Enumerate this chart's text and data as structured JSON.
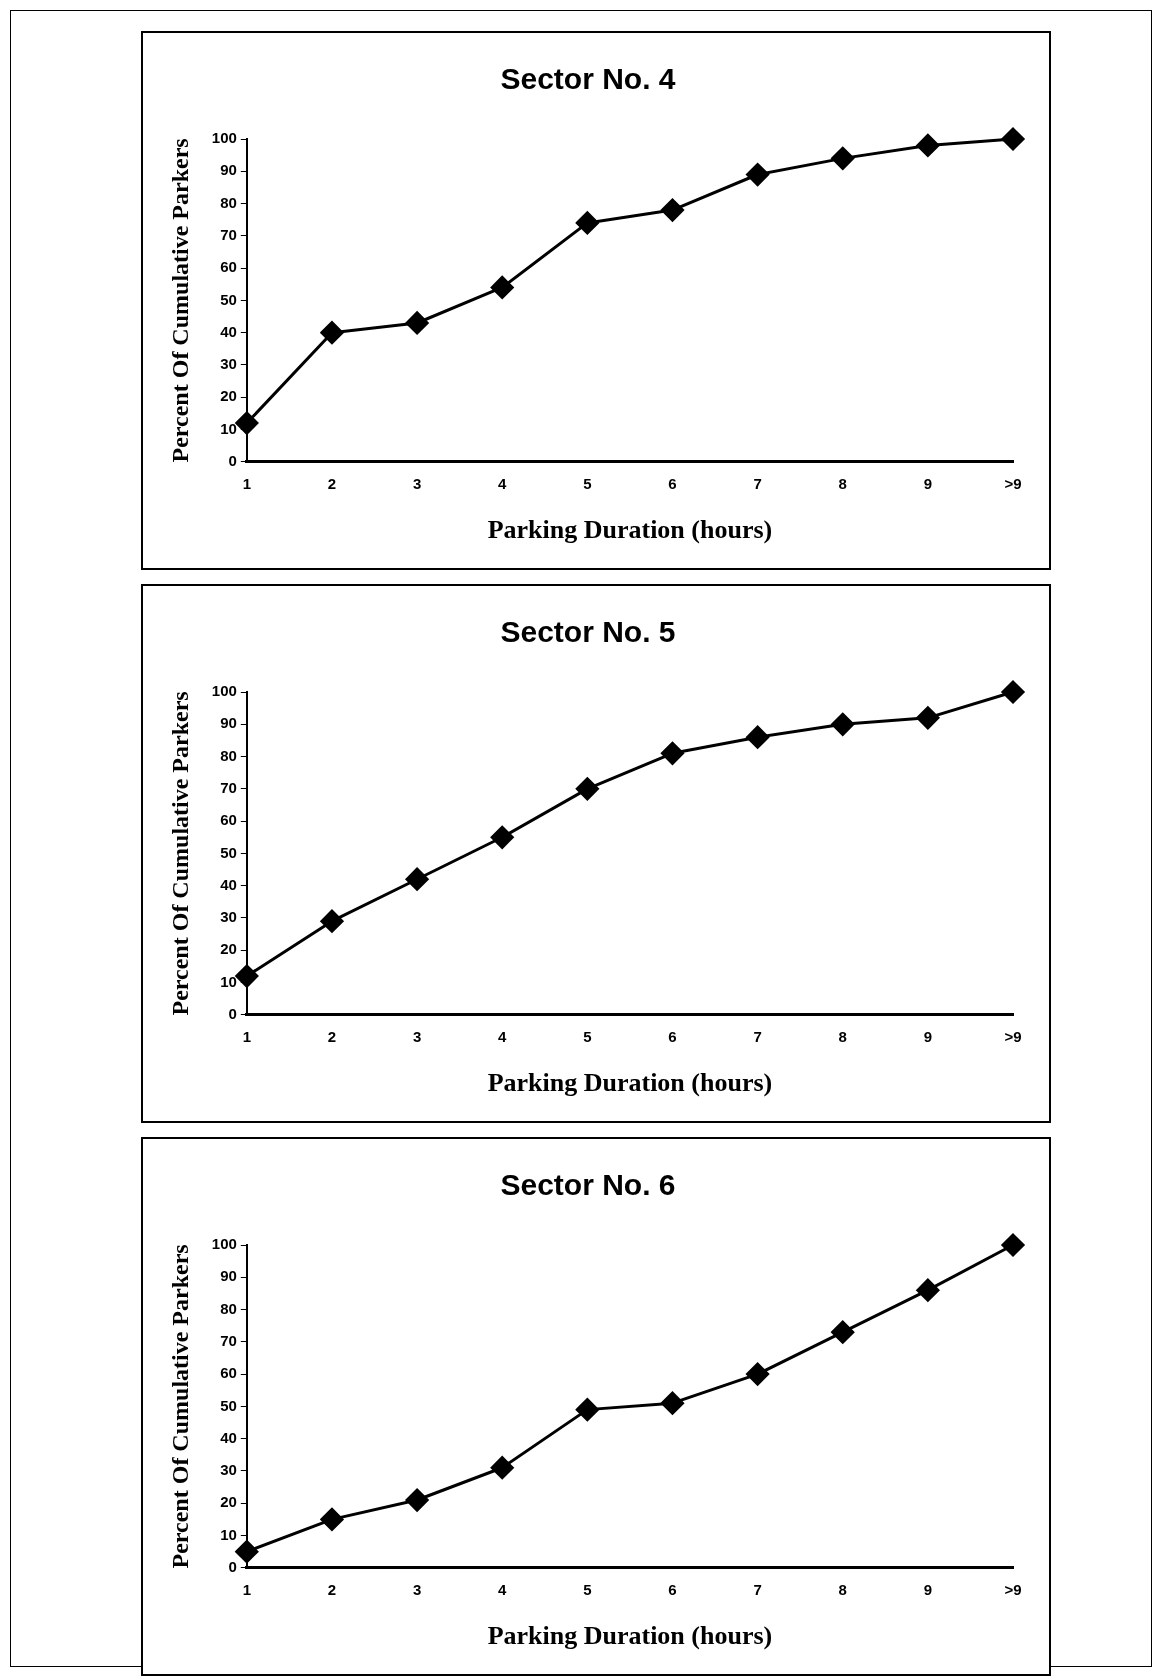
{
  "chart_data": [
    {
      "type": "line",
      "title": "Sector No. 4",
      "xlabel": "Parking Duration (hours)",
      "ylabel": "Percent Of Cumulative Parkers",
      "categories": [
        "1",
        "2",
        "3",
        "4",
        "5",
        "6",
        "7",
        "8",
        "9",
        ">9"
      ],
      "series": [
        {
          "color": "#000000",
          "values": [
            12,
            40,
            43,
            54,
            74,
            78,
            89,
            94,
            98,
            100
          ]
        }
      ],
      "ylim": [
        0,
        100
      ],
      "yticks": [
        0,
        10,
        20,
        30,
        40,
        50,
        60,
        70,
        80,
        90,
        100
      ],
      "grid": false,
      "legend": false,
      "marker": "diamond",
      "line_style": "solid"
    },
    {
      "type": "line",
      "title": "Sector No. 5",
      "xlabel": "Parking Duration (hours)",
      "ylabel": "Percent Of Cumulative Parkers",
      "categories": [
        "1",
        "2",
        "3",
        "4",
        "5",
        "6",
        "7",
        "8",
        "9",
        ">9"
      ],
      "series": [
        {
          "color": "#000000",
          "values": [
            12,
            29,
            42,
            55,
            70,
            81,
            86,
            90,
            92,
            100
          ]
        }
      ],
      "ylim": [
        0,
        100
      ],
      "yticks": [
        0,
        10,
        20,
        30,
        40,
        50,
        60,
        70,
        80,
        90,
        100
      ],
      "grid": false,
      "legend": false,
      "marker": "diamond",
      "line_style": "solid"
    },
    {
      "type": "line",
      "title": "Sector No. 6",
      "xlabel": "Parking Duration (hours)",
      "ylabel": "Percent Of Cumulative Parkers",
      "categories": [
        "1",
        "2",
        "3",
        "4",
        "5",
        "6",
        "7",
        "8",
        "9",
        ">9"
      ],
      "series": [
        {
          "color": "#000000",
          "values": [
            5,
            15,
            21,
            31,
            49,
            51,
            60,
            73,
            86,
            100
          ]
        }
      ],
      "ylim": [
        0,
        100
      ],
      "yticks": [
        0,
        10,
        20,
        30,
        40,
        50,
        60,
        70,
        80,
        90,
        100
      ],
      "grid": false,
      "legend": false,
      "marker": "diamond",
      "line_style": "solid"
    }
  ]
}
